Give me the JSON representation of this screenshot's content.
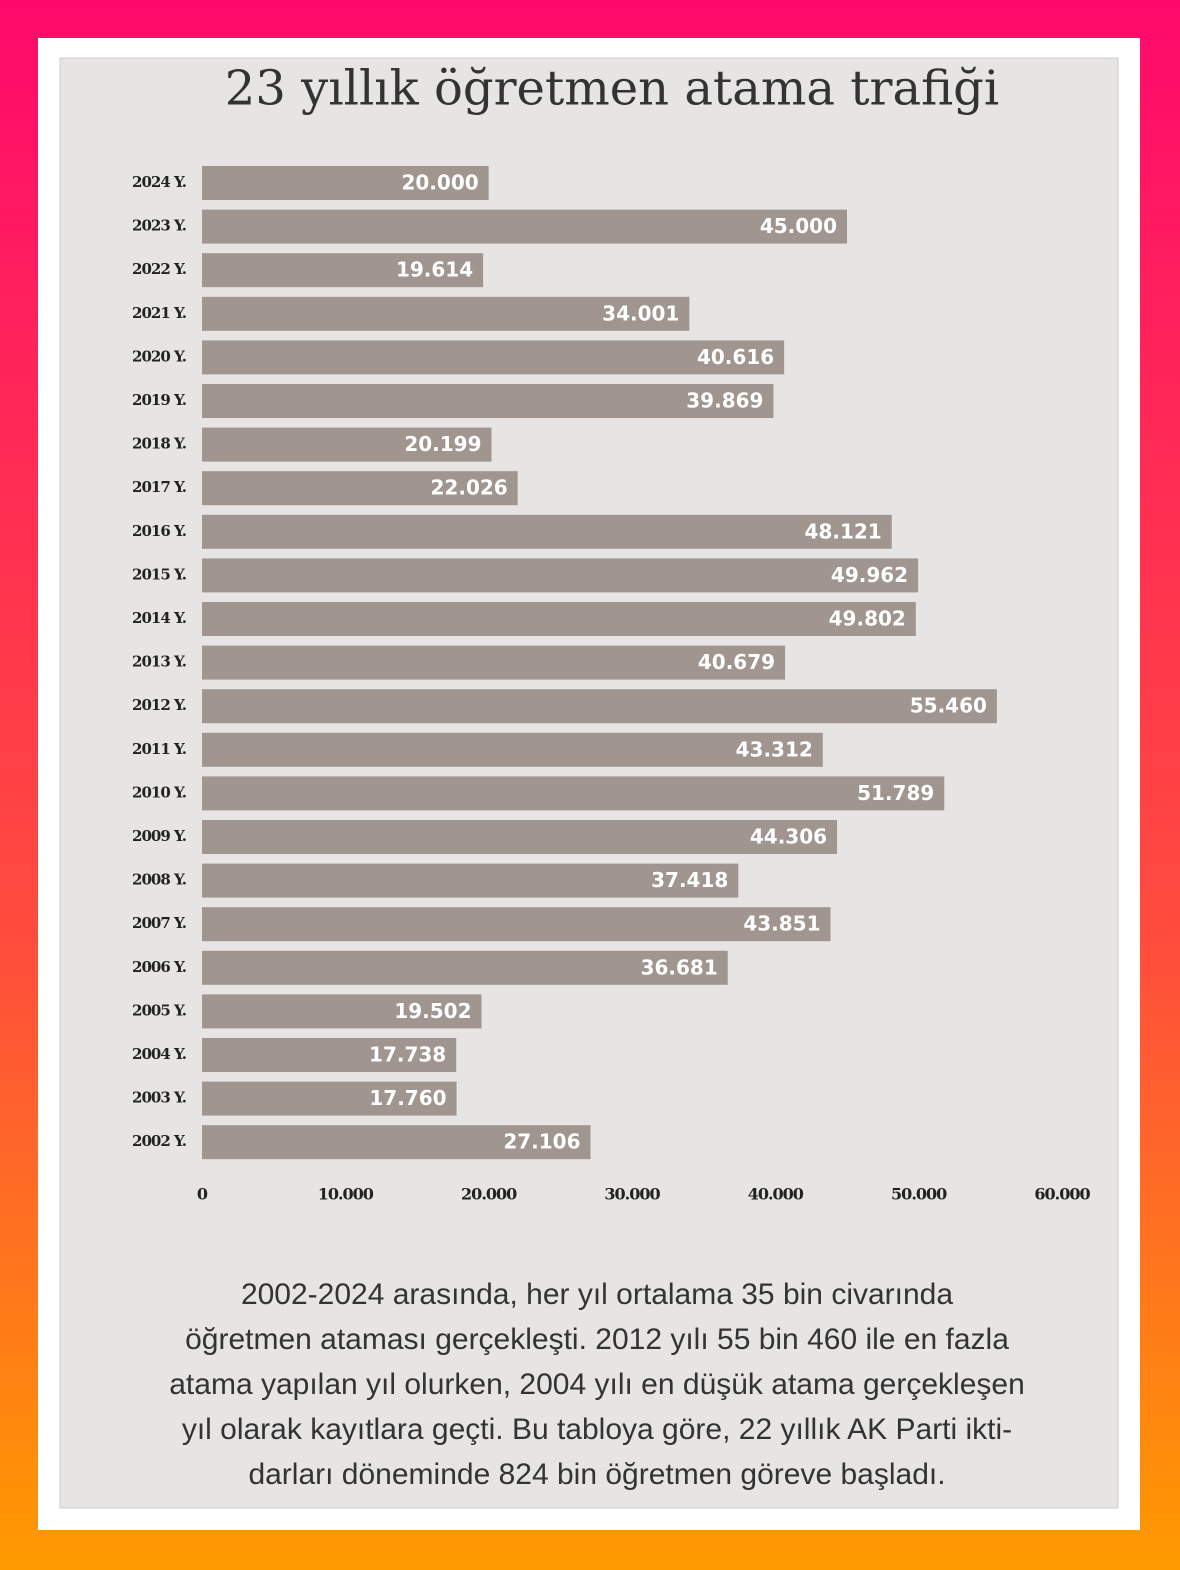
{
  "chart_data": {
    "type": "bar",
    "orientation": "horizontal",
    "title": "23 yıllık öğretmen atama trafiği",
    "categories": [
      "2024 Y.",
      "2023 Y.",
      "2022 Y.",
      "2021 Y.",
      "2020 Y.",
      "2019 Y.",
      "2018 Y.",
      "2017 Y.",
      "2016 Y.",
      "2015 Y.",
      "2014 Y.",
      "2013 Y.",
      "2012 Y.",
      "2011 Y.",
      "2010 Y.",
      "2009 Y.",
      "2008 Y.",
      "2007 Y.",
      "2006 Y.",
      "2005 Y.",
      "2004 Y.",
      "2003 Y.",
      "2002 Y."
    ],
    "values": [
      20000,
      45000,
      19614,
      34001,
      40616,
      39869,
      20199,
      22026,
      48121,
      49962,
      49802,
      40679,
      55460,
      43312,
      51789,
      44306,
      37418,
      43851,
      36681,
      19502,
      17738,
      17760,
      27106
    ],
    "value_labels": [
      "20.000",
      "45.000",
      "19.614",
      "34.001",
      "40.616",
      "39.869",
      "20.199",
      "22.026",
      "48.121",
      "49.962",
      "49.802",
      "40.679",
      "55.460",
      "43.312",
      "51.789",
      "44.306",
      "37.418",
      "43.851",
      "36.681",
      "19.502",
      "17.738",
      "17.760",
      "27.106"
    ],
    "color": "#a0968f",
    "xlim": [
      0,
      60000
    ],
    "xticks": [
      0,
      {
        "value": 10000,
        "label": "10.000"
      },
      {
        "value": 20000,
        "label": "20.000"
      },
      {
        "value": 30000,
        "label": "30.000"
      },
      {
        "value": 40000,
        "label": "40.000"
      },
      {
        "value": 50000,
        "label": "50.000"
      },
      {
        "value": 60000,
        "label": "60.000"
      }
    ],
    "grid": false,
    "note": [
      "2002-2024 arasında, her yıl ortalama 35 bin civarında",
      "öğretmen ataması gerçekleşti. 2012 yılı 55 bin 460 ile en fazla",
      "atama yapılan yıl olurken, 2004 yılı en düşük atama gerçekleşen",
      "yıl olarak kayıtlara geçti. Bu tabloya göre, 22 yıllık AK Parti ikti-",
      "darları döneminde 824 bin öğretmen göreve başladı."
    ]
  }
}
